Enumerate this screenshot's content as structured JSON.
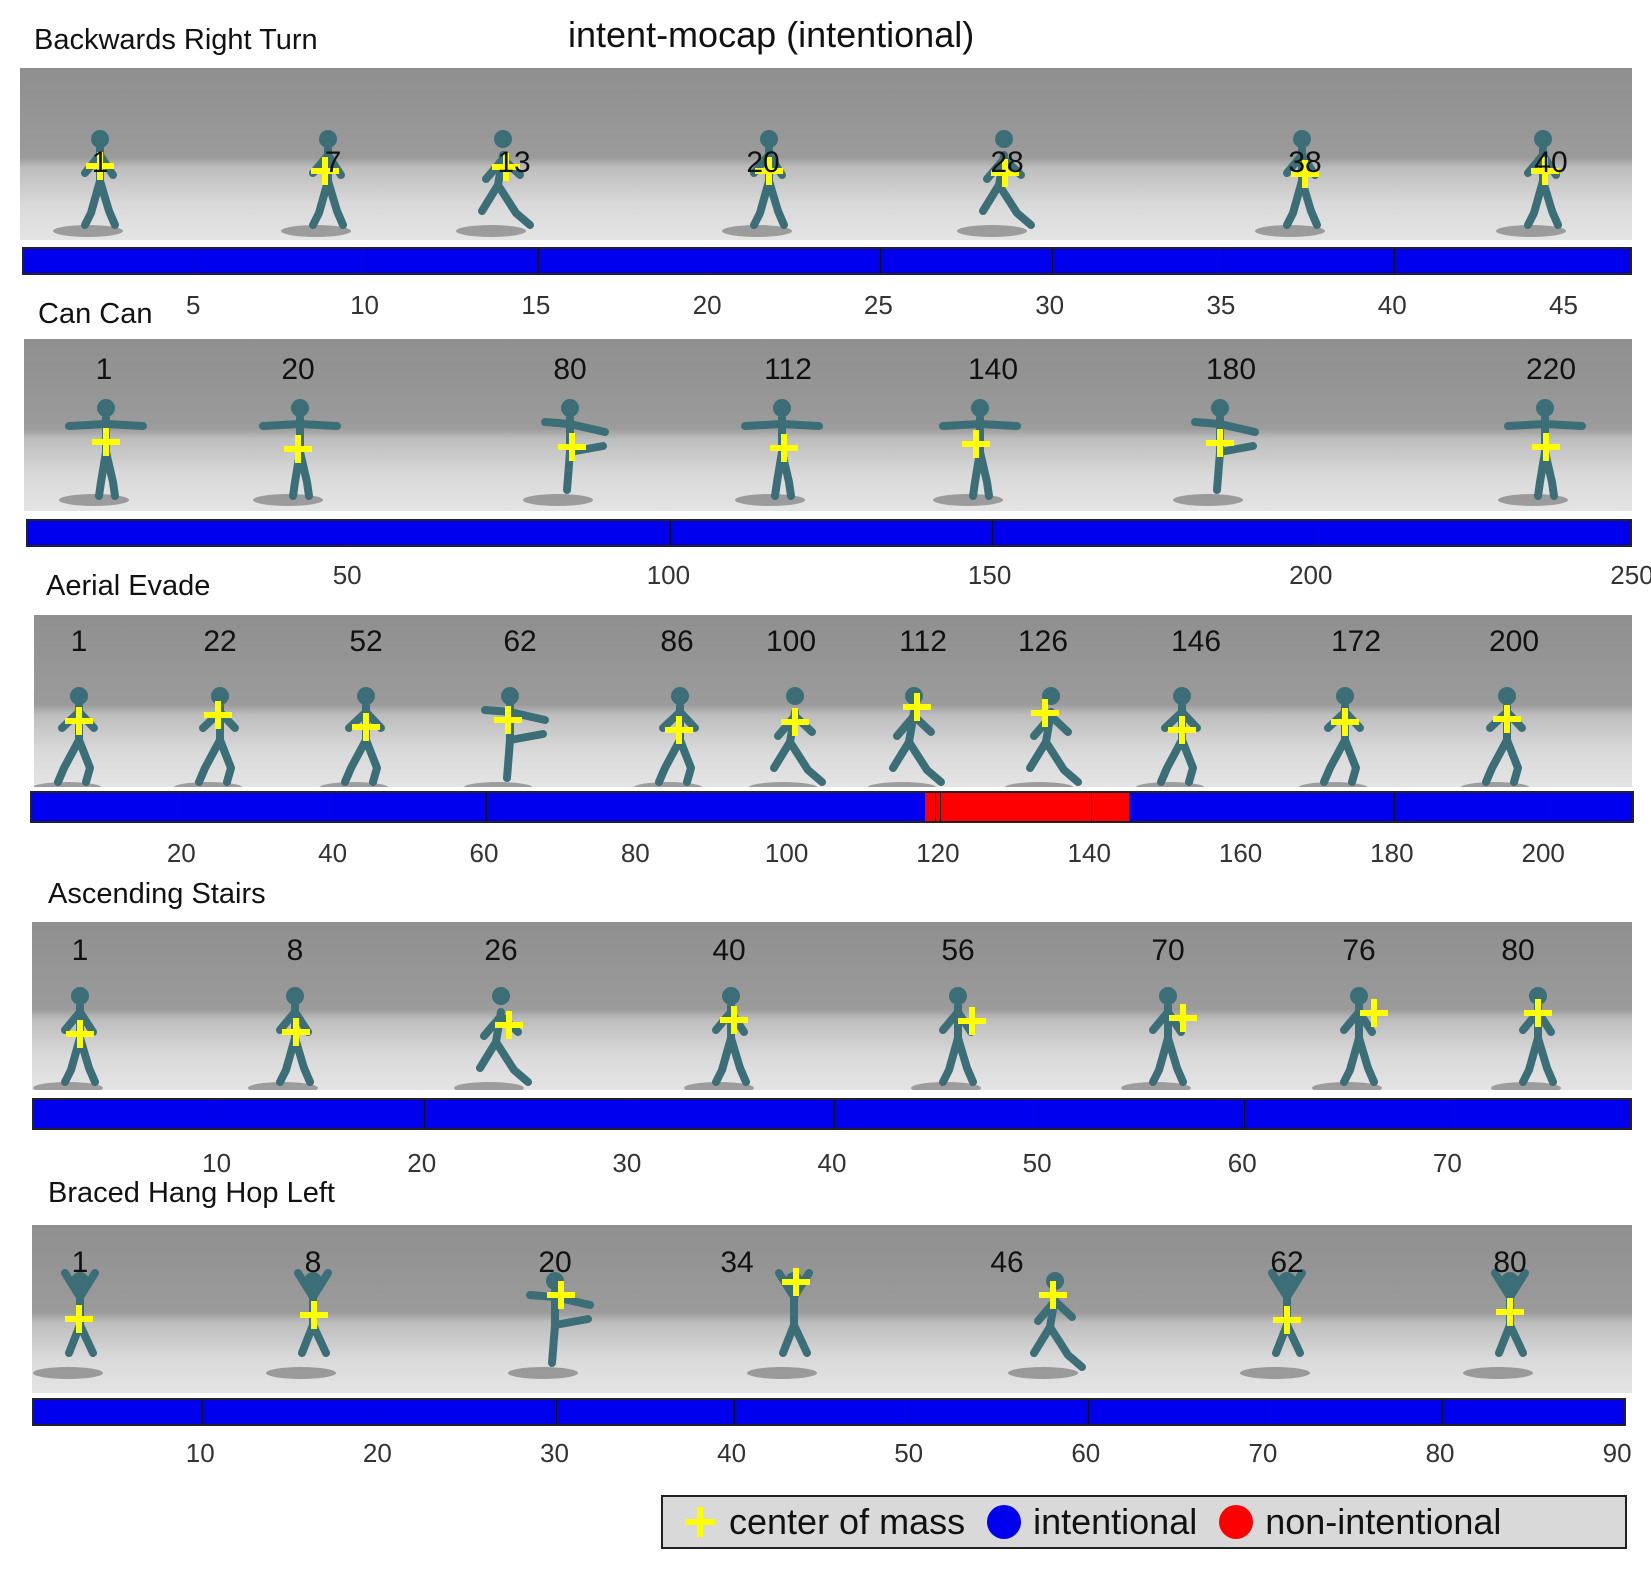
{
  "title": "intent-mocap (intentional)",
  "colors": {
    "intentional": "#0000ee",
    "non_intentional": "#ff0000",
    "com": "#ffff00",
    "figure": "#3c6e78"
  },
  "sequences": [
    {
      "name": "Backwards Right Turn",
      "frames": [
        "1",
        "7",
        "13",
        "20",
        "28",
        "38",
        "40"
      ],
      "axis": {
        "min": 0,
        "max": 47,
        "ticks": [
          5,
          10,
          15,
          20,
          25,
          30,
          35,
          40,
          45
        ]
      },
      "segments": [
        {
          "start": 0,
          "end": 47,
          "status": "intentional"
        }
      ]
    },
    {
      "name": "Can Can",
      "frames": [
        "1",
        "20",
        "80",
        "112",
        "140",
        "180",
        "220"
      ],
      "axis": {
        "min": 0,
        "max": 250,
        "ticks": [
          50,
          100,
          150,
          200,
          250
        ]
      },
      "segments": [
        {
          "start": 0,
          "end": 250,
          "status": "intentional"
        }
      ]
    },
    {
      "name": "Aerial Evade",
      "frames": [
        "1",
        "22",
        "52",
        "62",
        "86",
        "100",
        "112",
        "126",
        "146",
        "172",
        "200"
      ],
      "axis": {
        "min": 0,
        "max": 212,
        "ticks": [
          20,
          40,
          60,
          80,
          100,
          120,
          140,
          160,
          180,
          200
        ]
      },
      "segments": [
        {
          "start": 0,
          "end": 118,
          "status": "intentional"
        },
        {
          "start": 118,
          "end": 145,
          "status": "non-intentional"
        },
        {
          "start": 145,
          "end": 212,
          "status": "intentional"
        }
      ]
    },
    {
      "name": "Ascending Stairs",
      "frames": [
        "1",
        "8",
        "26",
        "40",
        "56",
        "70",
        "76",
        "80"
      ],
      "axis": {
        "min": 1,
        "max": 79,
        "ticks": [
          10,
          20,
          30,
          40,
          50,
          60,
          70
        ]
      },
      "segments": [
        {
          "start": 1,
          "end": 79,
          "status": "intentional"
        }
      ]
    },
    {
      "name": "Braced Hang Hop Left",
      "frames": [
        "1",
        "8",
        "20",
        "34",
        "46",
        "62",
        "80"
      ],
      "axis": {
        "min": 0.5,
        "max": 90.5,
        "ticks": [
          10,
          20,
          30,
          40,
          50,
          60,
          70,
          80,
          90
        ]
      },
      "segments": [
        {
          "start": 0.5,
          "end": 90.5,
          "status": "intentional"
        }
      ]
    }
  ],
  "legend": [
    {
      "icon": "plus-icon",
      "label": "center of mass"
    },
    {
      "icon": "blue-dot-icon",
      "label": "intentional"
    },
    {
      "icon": "red-dot-icon",
      "label": "non-intentional"
    }
  ]
}
